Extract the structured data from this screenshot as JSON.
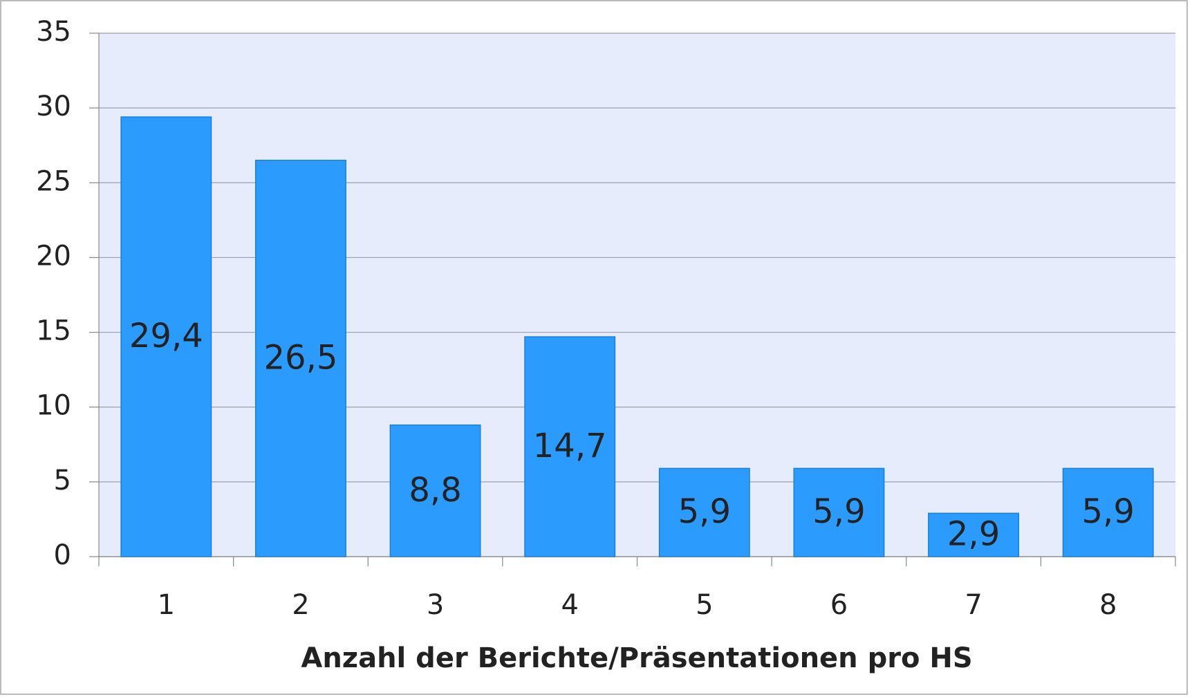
{
  "chart_data": {
    "type": "bar",
    "x_label": "Anzahl der Berichte/Präsentationen pro HS",
    "categories": [
      "1",
      "2",
      "3",
      "4",
      "5",
      "6",
      "7",
      "8"
    ],
    "values": [
      29.4,
      26.5,
      8.8,
      14.7,
      5.9,
      5.9,
      2.9,
      5.9
    ],
    "value_labels": [
      "29,4",
      "26,5",
      "8,8",
      "14,7",
      "5,9",
      "5,9",
      "2,9",
      "5,9"
    ],
    "color": "#2b9bfd",
    "ylim": [
      0,
      35
    ],
    "yticks": [
      0,
      5,
      10,
      15,
      20,
      25,
      30,
      35
    ],
    "grid": true
  }
}
